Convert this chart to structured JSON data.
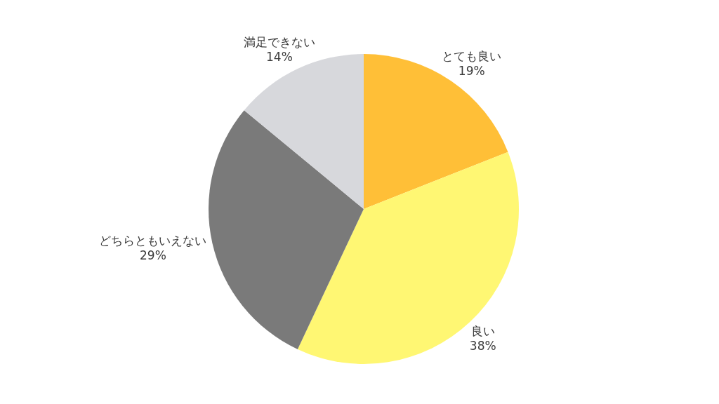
{
  "chart_data": {
    "type": "pie",
    "categories": [
      "とても良い",
      "良い",
      "どちらともいえない",
      "満足できない"
    ],
    "values": [
      19,
      38,
      29,
      14
    ],
    "colors": [
      "#ffbf37",
      "#fff773",
      "#7a7a7a",
      "#d7d8dc"
    ],
    "value_labels": [
      "19%",
      "38%",
      "29%",
      "14%"
    ]
  }
}
